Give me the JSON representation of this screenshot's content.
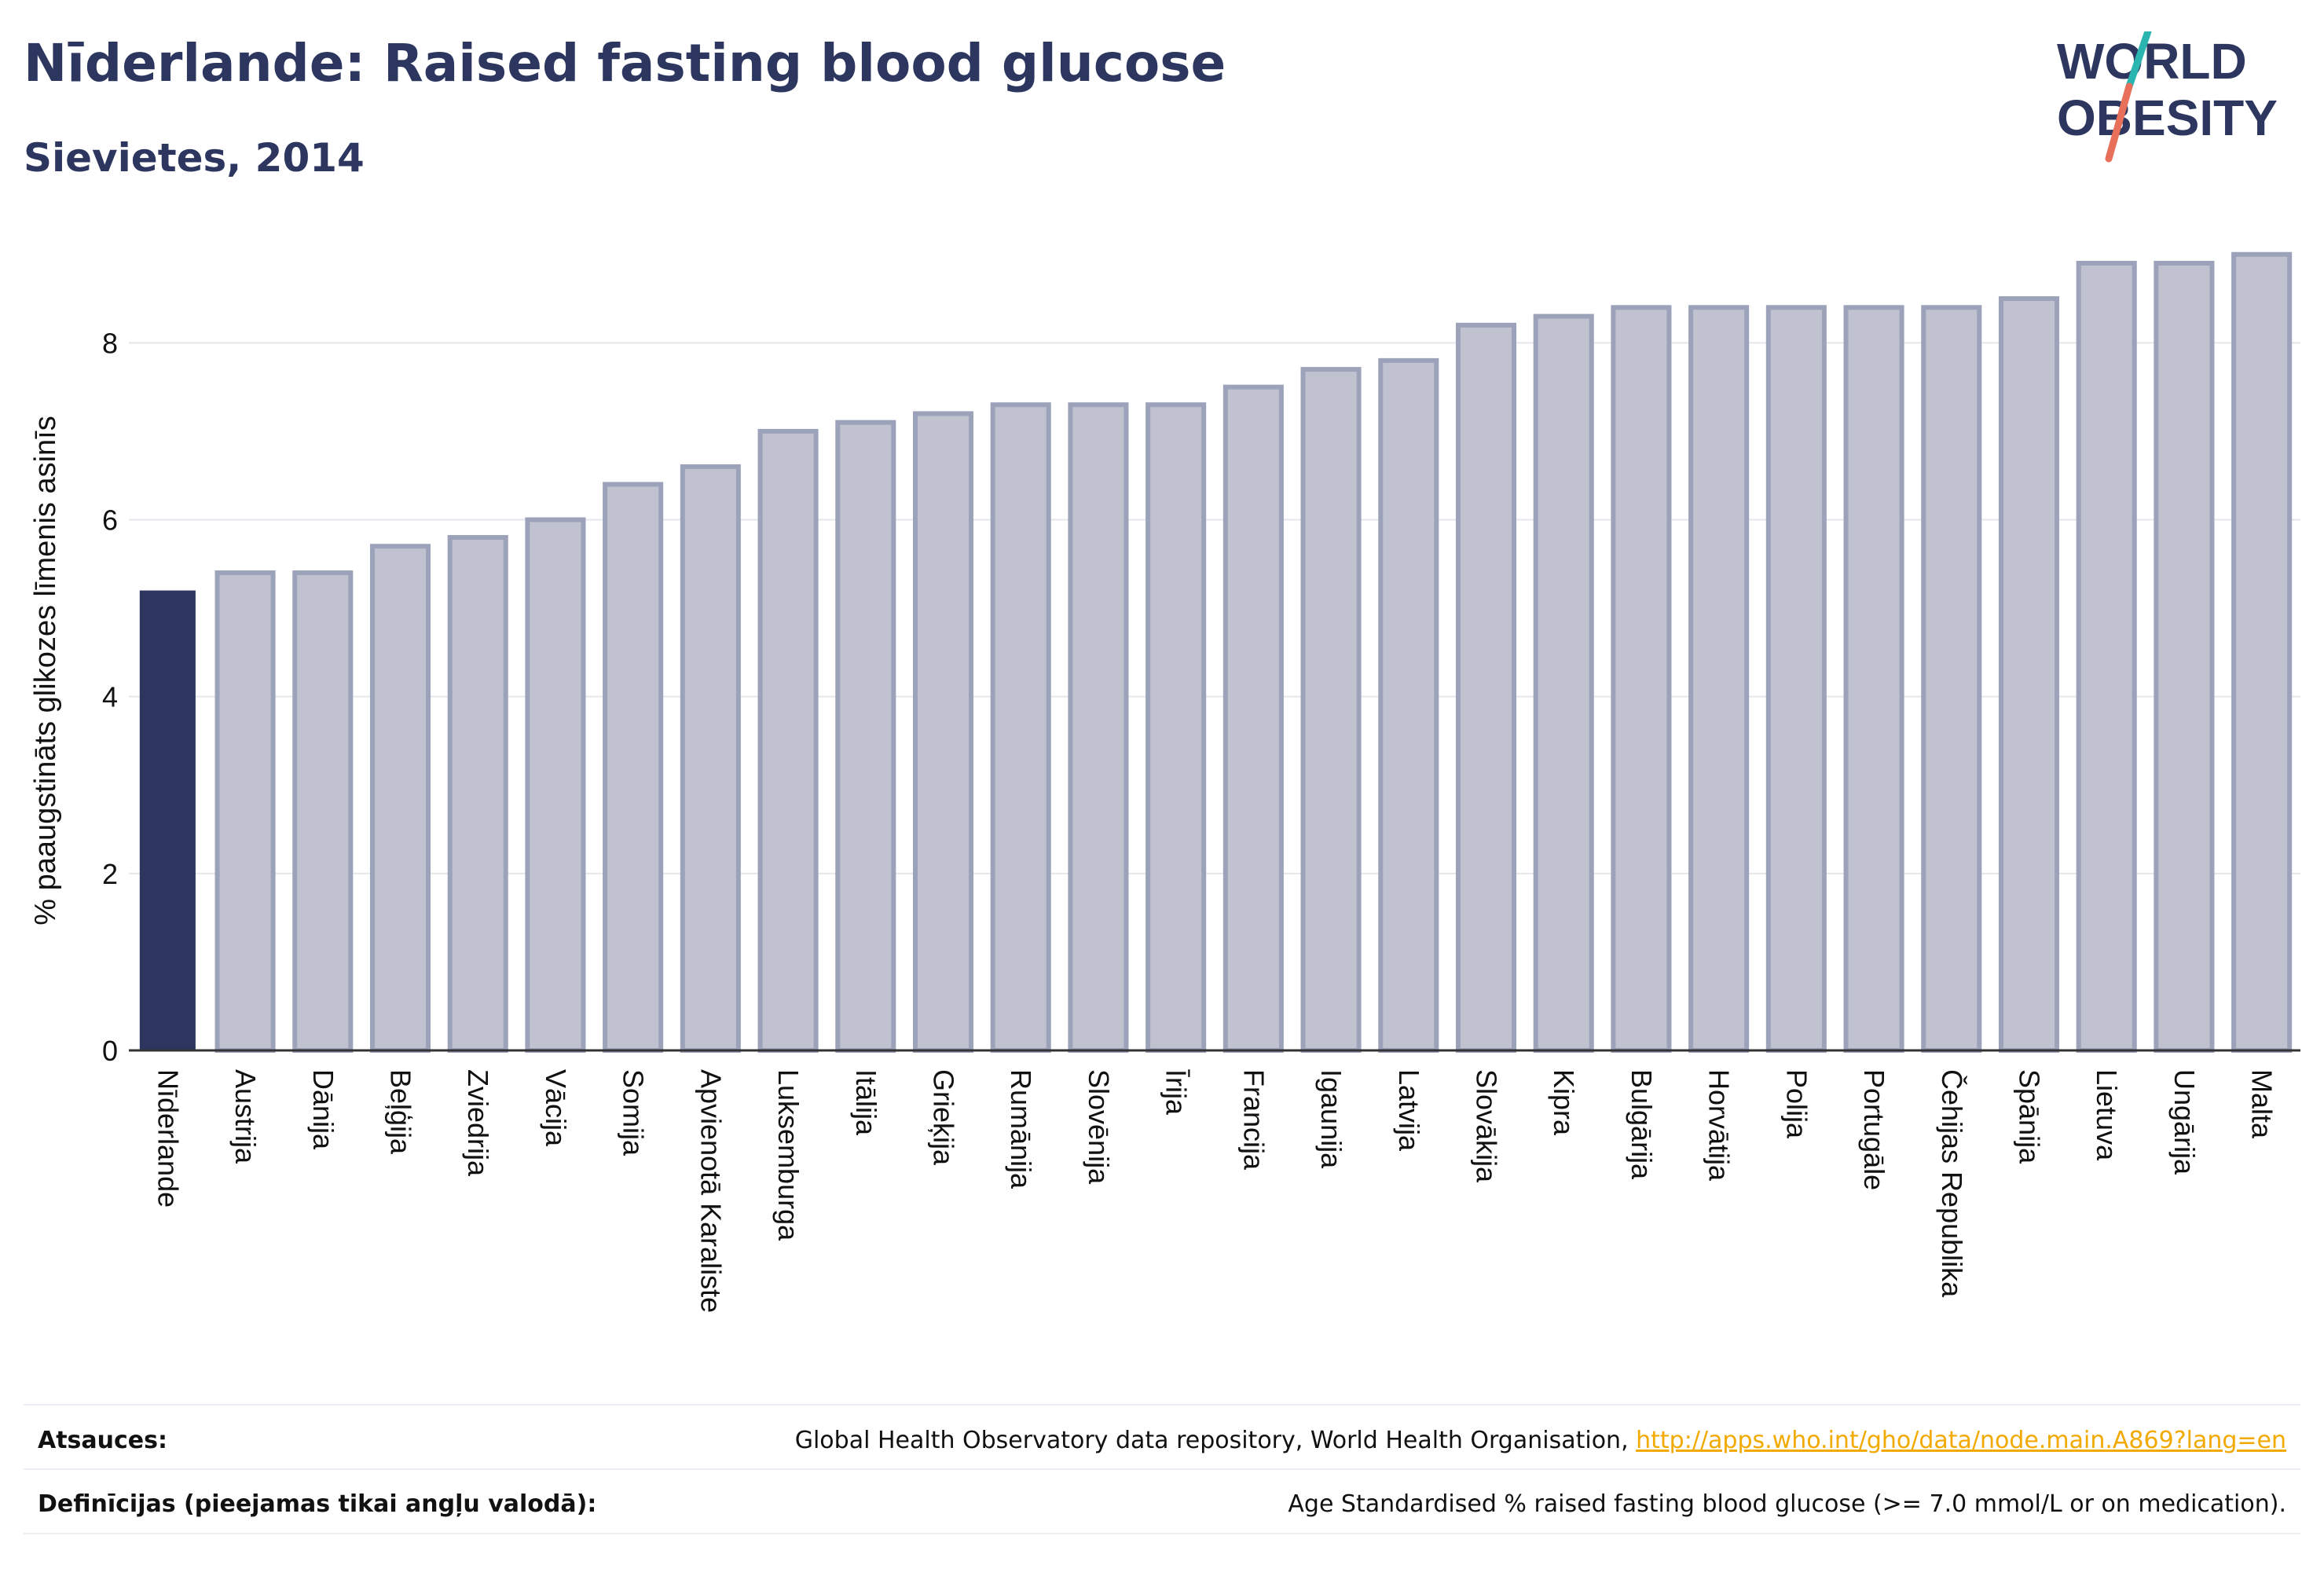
{
  "header": {
    "title": "Nīderlande: Raised fasting blood glucose",
    "subtitle": "Sievietes, 2014"
  },
  "logo": {
    "line1": "WORLD",
    "line2": "OBESITY",
    "colors": {
      "text": "#2c365e",
      "slash_top": "#2bb5b0",
      "slash_bottom": "#e8705a"
    }
  },
  "chart_data": {
    "type": "bar",
    "title": "Nīderlande: Raised fasting blood glucose",
    "subtitle": "Sievietes, 2014",
    "xlabel": "",
    "ylabel": "% paaugstināts glikozes līmenis asinīs",
    "ylim": [
      0,
      9.3
    ],
    "yticks": [
      0,
      2,
      4,
      6,
      8
    ],
    "grid": true,
    "highlight": "Nīderlande",
    "colors": {
      "highlight": "#2c365e",
      "other_fill": "#c0c3cf",
      "other_stroke": "#9ba2ba",
      "grid": "#e6e7ec",
      "axis": "#333333"
    },
    "categories": [
      "Nīderlande",
      "Austrija",
      "Dānija",
      "Beļģija",
      "Zviedrija",
      "Vācija",
      "Somija",
      "Apvienotā Karaliste",
      "Luksemburga",
      "Itālija",
      "Grieķija",
      "Rumānija",
      "Slovēnija",
      "Īrija",
      "Francija",
      "Igaunija",
      "Latvija",
      "Slovākija",
      "Kipra",
      "Bulgārija",
      "Horvātija",
      "Polija",
      "Portugāle",
      "Čehijas Republika",
      "Spānija",
      "Lietuva",
      "Ungārija",
      "Malta"
    ],
    "values": [
      5.2,
      5.4,
      5.4,
      5.7,
      5.8,
      6.0,
      6.4,
      6.6,
      7.0,
      7.1,
      7.2,
      7.3,
      7.3,
      7.3,
      7.5,
      7.7,
      7.8,
      8.2,
      8.3,
      8.4,
      8.4,
      8.4,
      8.4,
      8.4,
      8.5,
      8.9,
      8.9,
      9.0
    ]
  },
  "footer": {
    "sources_label": "Atsauces:",
    "sources_text": "Global Health Observatory data repository, World Health Organisation, ",
    "sources_link": "http://apps.who.int/gho/data/node.main.A869?lang=en",
    "definitions_label": "Definīcijas (pieejamas tikai angļu valodā):",
    "definitions_text": "Age Standardised % raised fasting blood glucose (>= 7.0 mmol/L or on medication)."
  }
}
